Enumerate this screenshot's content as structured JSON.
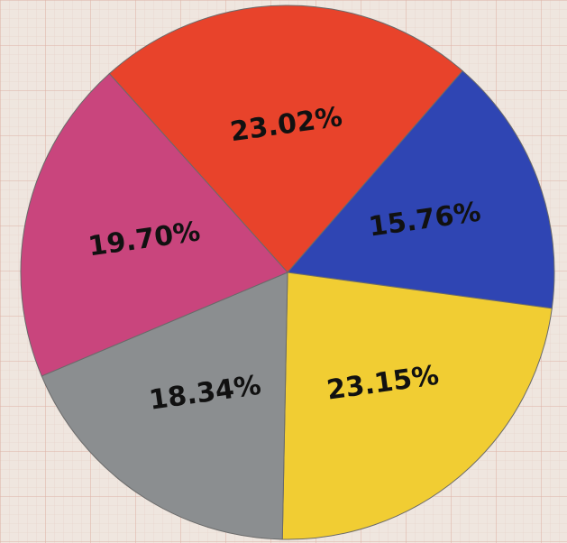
{
  "chart_data": {
    "type": "pie",
    "values": [
      23.02,
      15.76,
      23.15,
      18.34,
      19.7
    ],
    "value_labels": [
      "23.02%",
      "15.76%",
      "23.15%",
      "18.34%",
      "19.70%"
    ],
    "colors": [
      "#e8432b",
      "#2f45b3",
      "#f1cd33",
      "#8b8e90",
      "#c9457d"
    ]
  }
}
